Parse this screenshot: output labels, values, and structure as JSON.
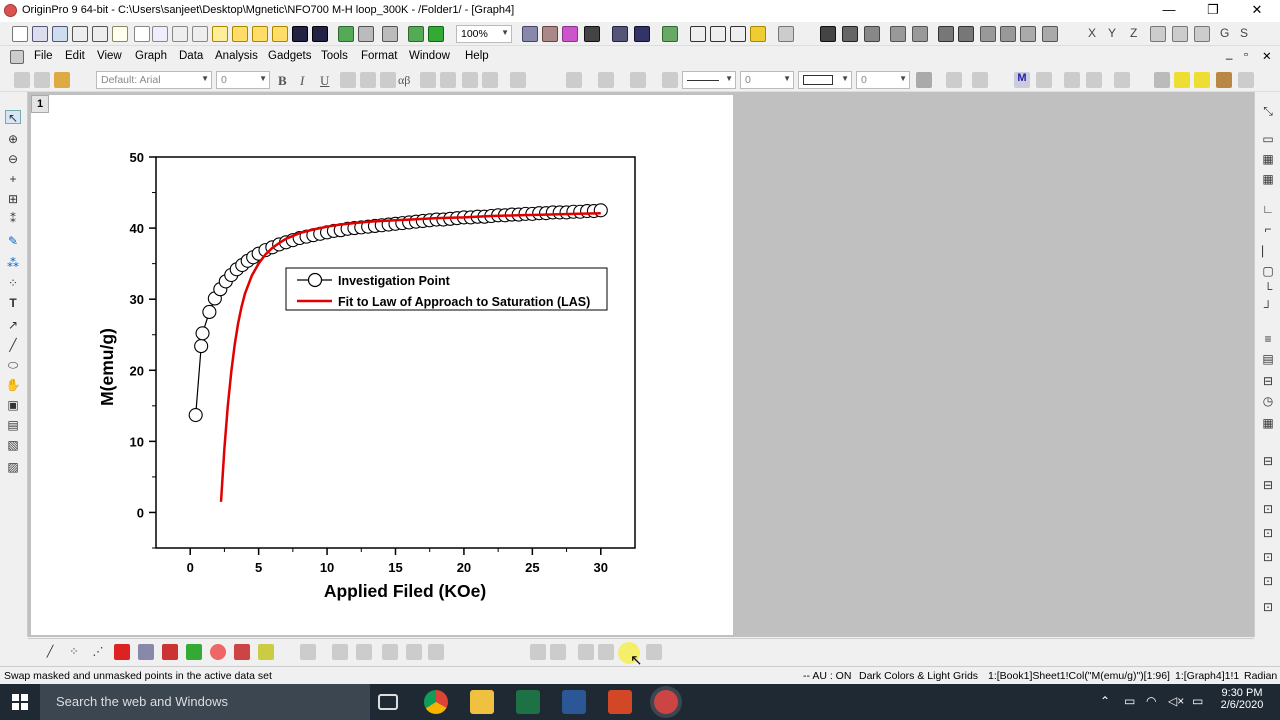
{
  "window": {
    "title": "OriginPro 9 64-bit - C:\\Users\\sanjeet\\Desktop\\Mgnetic\\NFO700 M-H loop_300K - /Folder1/ - [Graph4]",
    "minimize": "—",
    "restore": "❐",
    "close": "✕"
  },
  "toolbar": {
    "zoom_value": "100%",
    "right_letters": [
      "X",
      "Y",
      "Z",
      "G",
      "S"
    ]
  },
  "menu": [
    "File",
    "Edit",
    "View",
    "Graph",
    "Data",
    "Analysis",
    "Gadgets",
    "Tools",
    "Format",
    "Window",
    "Help"
  ],
  "format_toolbar": {
    "font": "Default: Arial",
    "font_size": "0",
    "bold": "B",
    "italic": "I",
    "underline": "U",
    "greek": "αβ",
    "line_width": "0",
    "fill_size": "0"
  },
  "layer_tab": "1",
  "chart_data": {
    "type": "scatter",
    "xlabel": "Applied Filed (KOe)",
    "ylabel": "M(emu/g)",
    "xlim": [
      -2.5,
      32.5
    ],
    "ylim": [
      -5,
      50
    ],
    "xticks": [
      0,
      5,
      10,
      15,
      20,
      25,
      30
    ],
    "yticks": [
      0,
      10,
      20,
      30,
      40,
      50
    ],
    "series": [
      {
        "name": "Investigation Point",
        "style": "line+open-circle",
        "color": "#000000",
        "x": [
          0.4,
          0.8,
          0.9,
          1.4,
          1.8,
          2.2,
          2.6,
          3.0,
          3.4,
          3.8,
          4.2,
          4.6,
          5.0,
          5.5,
          6.0,
          6.5,
          7.0,
          7.5,
          8.0,
          8.5,
          9.0,
          9.5,
          10.0,
          10.5,
          11.0,
          11.5,
          12.0,
          12.5,
          13.0,
          13.5,
          14.0,
          14.5,
          15.0,
          15.5,
          16.0,
          16.5,
          17.0,
          17.5,
          18.0,
          18.5,
          19.0,
          19.5,
          20.0,
          20.5,
          21.0,
          21.5,
          22.0,
          22.5,
          23.0,
          23.5,
          24.0,
          24.5,
          25.0,
          25.5,
          26.0,
          26.5,
          27.0,
          27.5,
          28.0,
          28.5,
          29.0,
          29.5,
          30.0
        ],
        "y": [
          13.7,
          23.4,
          25.2,
          28.2,
          30.1,
          31.4,
          32.5,
          33.4,
          34.2,
          34.8,
          35.4,
          35.9,
          36.4,
          36.9,
          37.3,
          37.7,
          38.0,
          38.3,
          38.6,
          38.8,
          39.0,
          39.2,
          39.4,
          39.6,
          39.7,
          39.9,
          40.0,
          40.1,
          40.2,
          40.3,
          40.4,
          40.5,
          40.6,
          40.7,
          40.8,
          40.9,
          41.0,
          41.1,
          41.2,
          41.2,
          41.3,
          41.4,
          41.5,
          41.5,
          41.6,
          41.6,
          41.7,
          41.8,
          41.8,
          41.9,
          41.9,
          42.0,
          42.0,
          42.1,
          42.1,
          42.2,
          42.2,
          42.2,
          42.3,
          42.3,
          42.4,
          42.4,
          42.5
        ]
      },
      {
        "name": "Fit to Law of Approach to Saturation (LAS)",
        "style": "line",
        "color": "#e00000",
        "x": [
          2.25,
          2.5,
          2.75,
          3.0,
          3.25,
          3.5,
          3.75,
          4.0,
          4.5,
          5.0,
          5.5,
          6.0,
          6.5,
          7.0,
          8.0,
          9.0,
          10.0,
          11.0,
          12.0,
          13.0,
          14.0,
          15.0,
          16.0,
          18.0,
          20.0,
          22.0,
          24.0,
          26.0,
          28.0,
          30.0
        ],
        "y": [
          1.5,
          9.0,
          15.0,
          19.8,
          23.6,
          26.6,
          28.9,
          30.8,
          33.3,
          35.0,
          36.3,
          37.2,
          37.9,
          38.5,
          39.3,
          39.8,
          40.2,
          40.5,
          40.7,
          40.9,
          41.0,
          41.1,
          41.2,
          41.4,
          41.5,
          41.7,
          41.8,
          41.9,
          42.0,
          42.1
        ]
      }
    ],
    "legend": {
      "placement": "inside-upper",
      "entries": [
        "Investigation Point",
        "Fit to Law of Approach to Saturation (LAS)"
      ]
    },
    "grid": false
  },
  "bottom_toolbar": {},
  "status": {
    "left": "Swap masked and unmasked points in the active data set",
    "au": "-- AU : ON",
    "theme": "Dark Colors & Light Grids",
    "dataset": "1:[Book1]Sheet1!Col(\"M(emu/g)\")[1:96]",
    "graph": "1:[Graph4]1!1",
    "angle": "Radian"
  },
  "taskbar": {
    "search_placeholder": "Search the web and Windows",
    "time": "9:30 PM",
    "date": "2/6/2020"
  }
}
